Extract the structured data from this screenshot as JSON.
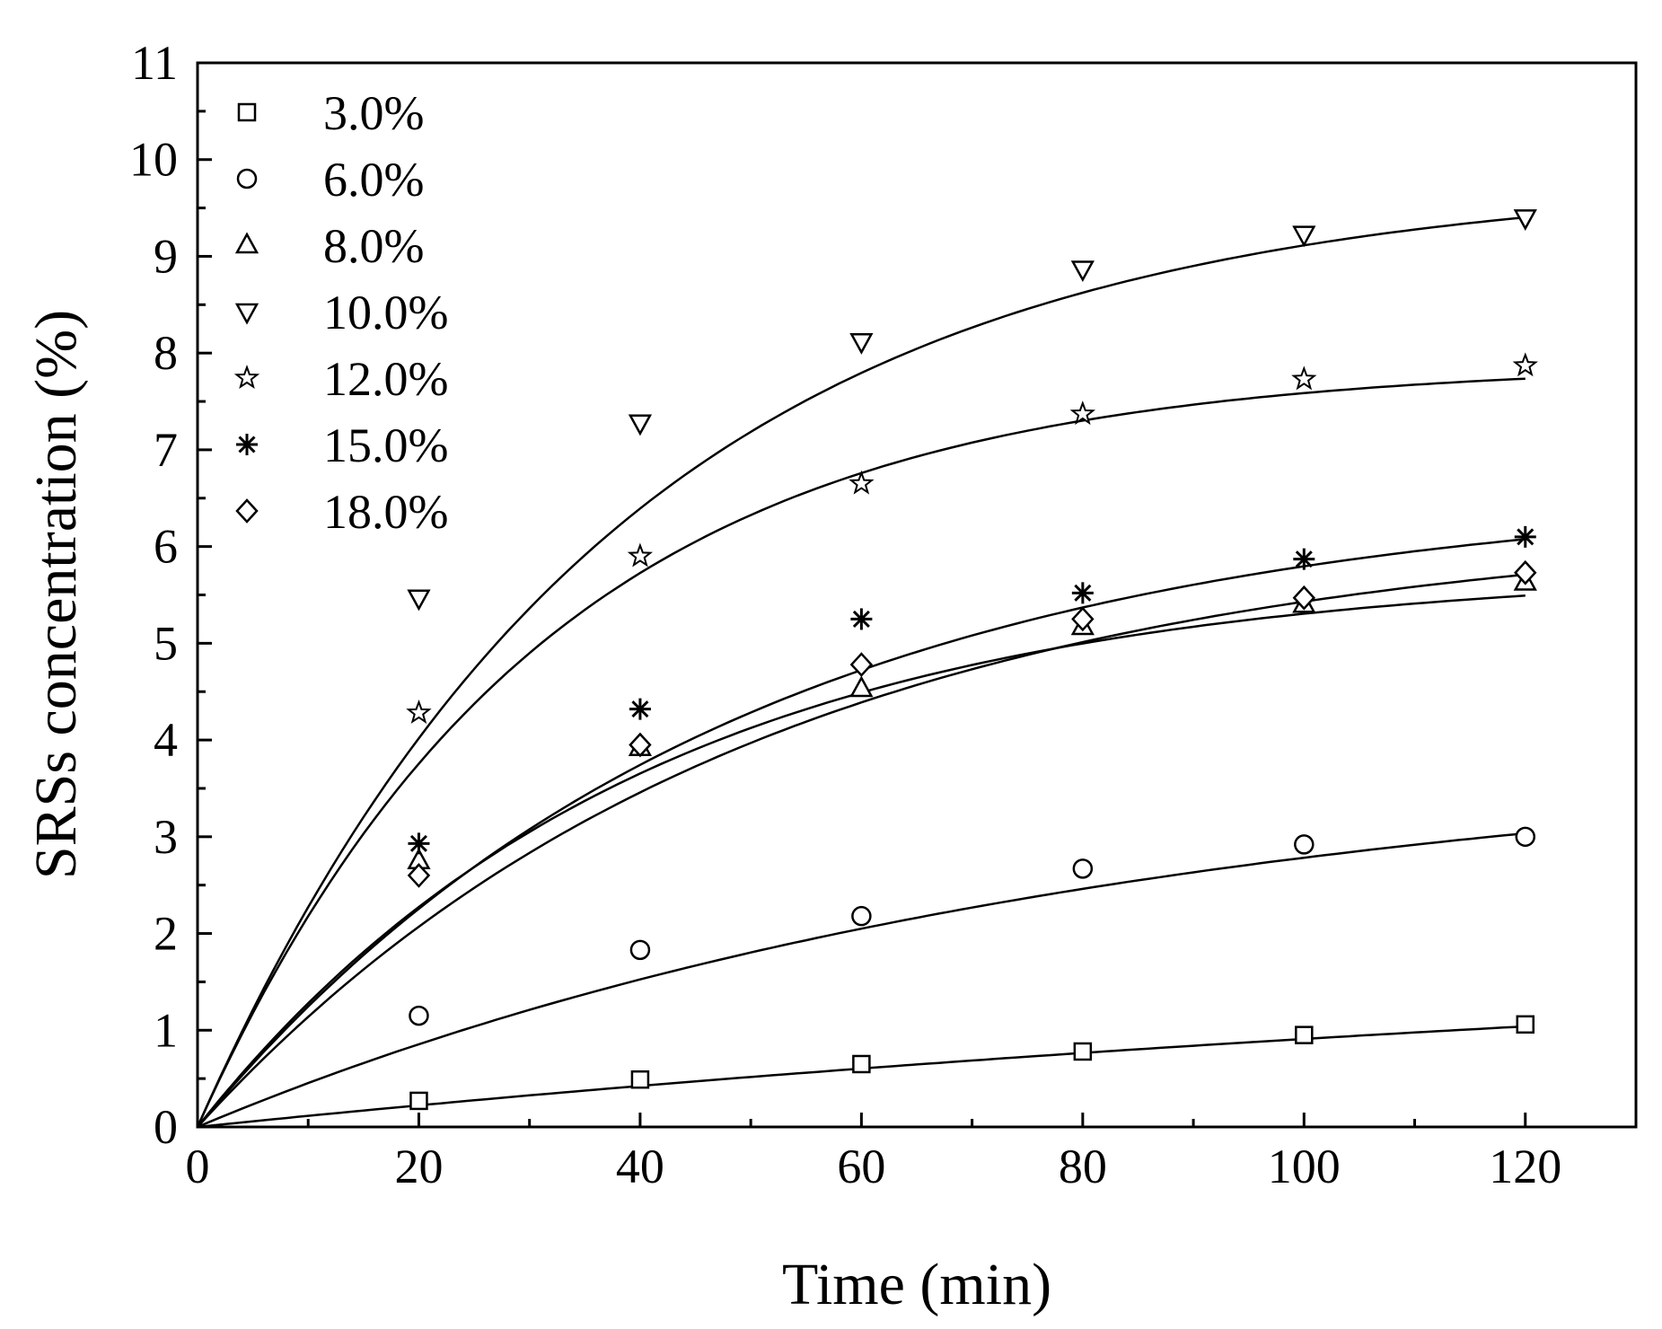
{
  "chart_data": {
    "type": "scatter",
    "title": "",
    "xlabel": "Time (min)",
    "ylabel": "SRSs concentration (%)",
    "xlim": [
      0,
      130
    ],
    "ylim": [
      0,
      11
    ],
    "xticks": [
      0,
      20,
      40,
      60,
      80,
      100,
      120
    ],
    "xtick_labels": [
      "0",
      "20",
      "40",
      "60",
      "80",
      "100",
      "120"
    ],
    "yticks": [
      0,
      1,
      2,
      3,
      4,
      5,
      6,
      7,
      8,
      9,
      10,
      11
    ],
    "ytick_labels": [
      "0",
      "1",
      "2",
      "3",
      "4",
      "5",
      "6",
      "7",
      "8",
      "9",
      "10",
      "11"
    ],
    "grid": false,
    "legend_position": "top-left",
    "fit_model": "exponential saturation fit curves through origin",
    "series": [
      {
        "name": "3.0%",
        "marker": "square",
        "x": [
          20,
          40,
          60,
          80,
          100,
          120
        ],
        "y": [
          0.27,
          0.49,
          0.65,
          0.78,
          0.95,
          1.06
        ],
        "fit": {
          "A": 2.17,
          "tau": 184
        }
      },
      {
        "name": "6.0%",
        "marker": "circle",
        "x": [
          20,
          40,
          60,
          80,
          100,
          120
        ],
        "y": [
          1.15,
          1.83,
          2.18,
          2.67,
          2.92,
          3.0
        ],
        "fit": {
          "A": 3.95,
          "tau": 82
        }
      },
      {
        "name": "8.0%",
        "marker": "triangle-up",
        "x": [
          20,
          40,
          60,
          80,
          100,
          120
        ],
        "y": [
          2.75,
          3.92,
          4.53,
          5.17,
          5.4,
          5.63
        ],
        "fit": {
          "A": 5.78,
          "tau": 40
        }
      },
      {
        "name": "10.0%",
        "marker": "triangle-down",
        "x": [
          20,
          40,
          60,
          80,
          100,
          120
        ],
        "y": [
          5.47,
          7.28,
          8.12,
          8.87,
          9.23,
          9.4
        ],
        "fit": {
          "A": 9.82,
          "tau": 38
        }
      },
      {
        "name": "12.0%",
        "marker": "star",
        "x": [
          20,
          40,
          60,
          80,
          100,
          120
        ],
        "y": [
          4.28,
          5.9,
          6.65,
          7.37,
          7.73,
          7.87
        ],
        "fit": {
          "A": 7.9,
          "tau": 31
        }
      },
      {
        "name": "15.0%",
        "marker": "asterisk",
        "x": [
          20,
          40,
          60,
          80,
          100,
          120
        ],
        "y": [
          2.93,
          4.32,
          5.25,
          5.52,
          5.87,
          6.1
        ],
        "fit": {
          "A": 6.62,
          "tau": 48
        }
      },
      {
        "name": "18.0%",
        "marker": "diamond",
        "x": [
          20,
          40,
          60,
          80,
          100,
          120
        ],
        "y": [
          2.6,
          3.95,
          4.78,
          5.25,
          5.47,
          5.73
        ],
        "fit": {
          "A": 6.28,
          "tau": 50
        }
      }
    ]
  }
}
